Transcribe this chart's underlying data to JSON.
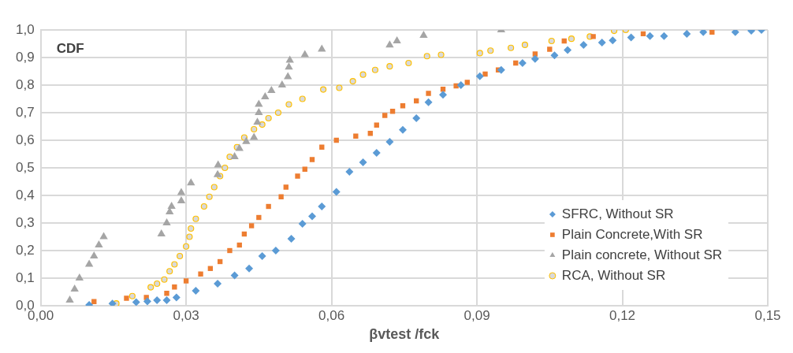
{
  "chart_data": {
    "type": "scatter",
    "xlabel": "βvtest /fck",
    "annotations": [
      "CDF"
    ],
    "xlim": [
      0,
      0.15
    ],
    "ylim": [
      0,
      1
    ],
    "xticks": [
      {
        "value": 0,
        "label": "0,00"
      },
      {
        "value": 0.03,
        "label": "0,03"
      },
      {
        "value": 0.06,
        "label": "0,06"
      },
      {
        "value": 0.09,
        "label": "0,09"
      },
      {
        "value": 0.12,
        "label": "0,12"
      },
      {
        "value": 0.15,
        "label": "0,15"
      }
    ],
    "yticks": [
      {
        "value": 0,
        "label": "0,0"
      },
      {
        "value": 0.1,
        "label": "0,1"
      },
      {
        "value": 0.2,
        "label": "0,2"
      },
      {
        "value": 0.3,
        "label": "0,3"
      },
      {
        "value": 0.4,
        "label": "0,4"
      },
      {
        "value": 0.5,
        "label": "0,5"
      },
      {
        "value": 0.6,
        "label": "0,6"
      },
      {
        "value": 0.7,
        "label": "0,7"
      },
      {
        "value": 0.8,
        "label": "0,8"
      },
      {
        "value": 0.9,
        "label": "0,9"
      },
      {
        "value": 1,
        "label": "1,0"
      }
    ],
    "grid": true,
    "legend": "bottom right",
    "series": [
      {
        "name": "SFRC, Without SR",
        "color": "#5b9bd5",
        "marker": "diamond",
        "x": [
          0.01,
          0.0148,
          0.0197,
          0.022,
          0.024,
          0.026,
          0.028,
          0.032,
          0.0365,
          0.04,
          0.043,
          0.0457,
          0.0485,
          0.0517,
          0.054,
          0.056,
          0.058,
          0.061,
          0.0637,
          0.0665,
          0.0693,
          0.072,
          0.0747,
          0.0775,
          0.08,
          0.083,
          0.0867,
          0.0906,
          0.095,
          0.0994,
          0.102,
          0.106,
          0.1087,
          0.112,
          0.1158,
          0.118,
          0.1218,
          0.1257,
          0.1286,
          0.1333,
          0.1367,
          0.1433,
          0.1466,
          0.1487
        ],
        "values": [
          0.003,
          0.008,
          0.013,
          0.016,
          0.02,
          0.02,
          0.03,
          0.054,
          0.08,
          0.11,
          0.135,
          0.18,
          0.2,
          0.243,
          0.297,
          0.324,
          0.36,
          0.413,
          0.486,
          0.52,
          0.554,
          0.594,
          0.638,
          0.68,
          0.738,
          0.765,
          0.8,
          0.832,
          0.855,
          0.88,
          0.895,
          0.908,
          0.927,
          0.946,
          0.954,
          0.962,
          0.973,
          0.978,
          0.978,
          0.986,
          0.992,
          0.992,
          0.997,
          1.0
        ]
      },
      {
        "name": "Plain Concrete,With SR",
        "color": "#ed7d31",
        "marker": "square",
        "x": [
          0.011,
          0.0177,
          0.0218,
          0.026,
          0.0276,
          0.03,
          0.033,
          0.035,
          0.037,
          0.039,
          0.041,
          0.042,
          0.0435,
          0.045,
          0.047,
          0.0496,
          0.0506,
          0.053,
          0.0545,
          0.056,
          0.058,
          0.061,
          0.065,
          0.068,
          0.0693,
          0.071,
          0.0726,
          0.0747,
          0.0775,
          0.08,
          0.083,
          0.0857,
          0.088,
          0.0917,
          0.0944,
          0.098,
          0.102,
          0.105,
          0.108,
          0.114,
          0.1243,
          0.1385
        ],
        "values": [
          0.015,
          0.027,
          0.03,
          0.045,
          0.068,
          0.09,
          0.115,
          0.135,
          0.16,
          0.2,
          0.22,
          0.26,
          0.29,
          0.32,
          0.36,
          0.395,
          0.43,
          0.47,
          0.495,
          0.53,
          0.575,
          0.6,
          0.615,
          0.625,
          0.655,
          0.69,
          0.705,
          0.725,
          0.743,
          0.77,
          0.785,
          0.797,
          0.81,
          0.84,
          0.855,
          0.88,
          0.913,
          0.93,
          0.96,
          0.976,
          0.986,
          0.992
        ]
      },
      {
        "name": "Plain concrete, Without SR",
        "color": "#a5a5a5",
        "marker": "triangle",
        "x": [
          0.006,
          0.007,
          0.008,
          0.01,
          0.011,
          0.012,
          0.013,
          0.0249,
          0.026,
          0.0266,
          0.027,
          0.029,
          0.029,
          0.031,
          0.0365,
          0.0366,
          0.04,
          0.041,
          0.0424,
          0.044,
          0.0447,
          0.045,
          0.045,
          0.0463,
          0.0476,
          0.0498,
          0.051,
          0.0512,
          0.0514,
          0.0545,
          0.058,
          0.072,
          0.0735,
          0.079,
          0.095
        ],
        "values": [
          0.02,
          0.06,
          0.1,
          0.15,
          0.18,
          0.22,
          0.25,
          0.26,
          0.3,
          0.34,
          0.36,
          0.38,
          0.41,
          0.445,
          0.475,
          0.51,
          0.54,
          0.57,
          0.595,
          0.61,
          0.665,
          0.7,
          0.73,
          0.757,
          0.78,
          0.8,
          0.83,
          0.865,
          0.89,
          0.91,
          0.93,
          0.945,
          0.96,
          0.98,
          1.0
        ]
      },
      {
        "name": "RCA, Without SR",
        "color": "#ffc000",
        "marker": "circle",
        "x": [
          0.0156,
          0.0189,
          0.0227,
          0.024,
          0.0255,
          0.0266,
          0.0276,
          0.0287,
          0.03,
          0.0307,
          0.031,
          0.032,
          0.0337,
          0.0348,
          0.0358,
          0.037,
          0.038,
          0.039,
          0.0405,
          0.042,
          0.044,
          0.0457,
          0.047,
          0.049,
          0.0512,
          0.054,
          0.0583,
          0.0616,
          0.0644,
          0.0665,
          0.069,
          0.072,
          0.0759,
          0.0797,
          0.0826,
          0.0906,
          0.0928,
          0.097,
          0.0999,
          0.1054,
          0.1095,
          0.1133,
          0.1183,
          0.1207
        ],
        "values": [
          0.008,
          0.035,
          0.067,
          0.08,
          0.095,
          0.125,
          0.15,
          0.18,
          0.215,
          0.25,
          0.28,
          0.315,
          0.36,
          0.395,
          0.43,
          0.47,
          0.5,
          0.54,
          0.575,
          0.61,
          0.64,
          0.657,
          0.68,
          0.7,
          0.73,
          0.75,
          0.784,
          0.79,
          0.814,
          0.838,
          0.855,
          0.868,
          0.88,
          0.905,
          0.91,
          0.916,
          0.925,
          0.935,
          0.946,
          0.96,
          0.968,
          0.976,
          0.997,
          1.0
        ]
      }
    ]
  }
}
